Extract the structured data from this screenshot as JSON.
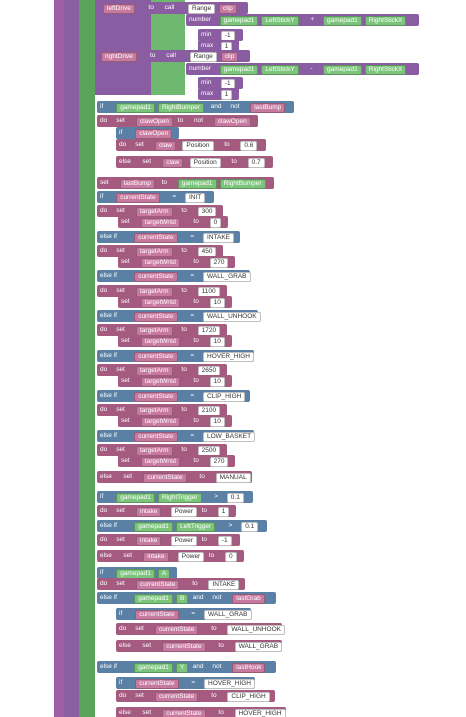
{
  "rows": [
    [
      "leftDrive",
      "to",
      "call",
      "Range",
      "clip"
    ],
    [
      "number",
      "gamepad1",
      "LeftStickY",
      "+",
      "gamepad1",
      "RightStickX"
    ],
    [
      "min",
      "-1"
    ],
    [
      "max",
      "1"
    ],
    [
      "rightDrive",
      "to",
      "call",
      "Range",
      "clip"
    ],
    [
      "number",
      "gamepad1",
      "LeftStickY",
      "-",
      "gamepad1",
      "RightStickX"
    ],
    [
      "min",
      "-1"
    ],
    [
      "max",
      "1"
    ],
    [
      "if",
      "gamepad1",
      "RightBumper",
      "and",
      "not",
      "lastBump"
    ],
    [
      "do",
      "set",
      "clawOpen",
      "to",
      "not",
      "clawOpen"
    ],
    [
      "if",
      "clawOpen"
    ],
    [
      "do",
      "set",
      "claw",
      "Position",
      "to",
      "0.6"
    ],
    [
      "else",
      "set",
      "claw",
      "Position",
      "to",
      "0.7"
    ],
    [
      "set",
      "lastBump",
      "to",
      "gamepad1",
      "RightBumper"
    ],
    [
      "if",
      "currentState",
      "=",
      "INIT"
    ],
    [
      "do",
      "set",
      "targetArm",
      "to",
      "300"
    ],
    [
      "set",
      "targetWrist",
      "to",
      "0"
    ],
    [
      "else if",
      "currentState",
      "=",
      "INTAKE"
    ],
    [
      "do",
      "set",
      "targetArm",
      "to",
      "450"
    ],
    [
      "set",
      "targetWrist",
      "to",
      "270"
    ],
    [
      "else if",
      "currentState",
      "=",
      "WALL_GRAB"
    ],
    [
      "do",
      "set",
      "targetArm",
      "to",
      "1100"
    ],
    [
      "set",
      "targetWrist",
      "to",
      "10"
    ],
    [
      "else if",
      "currentState",
      "=",
      "WALL_UNHOOK"
    ],
    [
      "do",
      "set",
      "targetArm",
      "to",
      "1720"
    ],
    [
      "set",
      "targetWrist",
      "to",
      "10"
    ],
    [
      "else if",
      "currentState",
      "=",
      "HOVER_HIGH"
    ],
    [
      "do",
      "set",
      "targetArm",
      "to",
      "2650"
    ],
    [
      "set",
      "targetWrist",
      "to",
      "10"
    ],
    [
      "else if",
      "currentState",
      "=",
      "CLIP_HIGH"
    ],
    [
      "do",
      "set",
      "targetArm",
      "to",
      "2100"
    ],
    [
      "set",
      "targetWrist",
      "to",
      "10"
    ],
    [
      "else if",
      "currentState",
      "=",
      "LOW_BASKET"
    ],
    [
      "do",
      "set",
      "targetArm",
      "to",
      "2500"
    ],
    [
      "set",
      "targetWrist",
      "to",
      "270"
    ],
    [
      "else",
      "set",
      "currentState",
      "to",
      "MANUAL"
    ],
    [
      "if",
      "gamepad1",
      "RightTrigger",
      ">",
      "0.1"
    ],
    [
      "do",
      "set",
      "intake",
      "Power",
      "to",
      "1"
    ],
    [
      "else if",
      "gamepad1",
      "LeftTrigger",
      ">",
      "0.1"
    ],
    [
      "do",
      "set",
      "intake",
      "Power",
      "to",
      "-1"
    ],
    [
      "else",
      "set",
      "intake",
      "Power",
      "to",
      "0"
    ],
    [
      "if",
      "gamepad1",
      "A"
    ],
    [
      "do",
      "set",
      "currentState",
      "to",
      "INTAKE"
    ],
    [
      "else if",
      "gamepad1",
      "B",
      "and",
      "not",
      "lastGrab"
    ],
    [
      "if",
      "currentState",
      "=",
      "WALL_GRAB"
    ],
    [
      "do",
      "set",
      "currentState",
      "to",
      "WALL_UNHOOK"
    ],
    [
      "else",
      "set",
      "currentState",
      "to",
      "WALL_GRAB"
    ],
    [
      "else if",
      "gamepad1",
      "Y",
      "and",
      "not",
      "lastHook"
    ],
    [
      "if",
      "currentState",
      "=",
      "HOVER_HIGH"
    ],
    [
      "do",
      "set",
      "currentState",
      "to",
      "CLIP_HIGH"
    ],
    [
      "else",
      "set",
      "currentState",
      "to",
      "HOVER_HIGH"
    ]
  ]
}
